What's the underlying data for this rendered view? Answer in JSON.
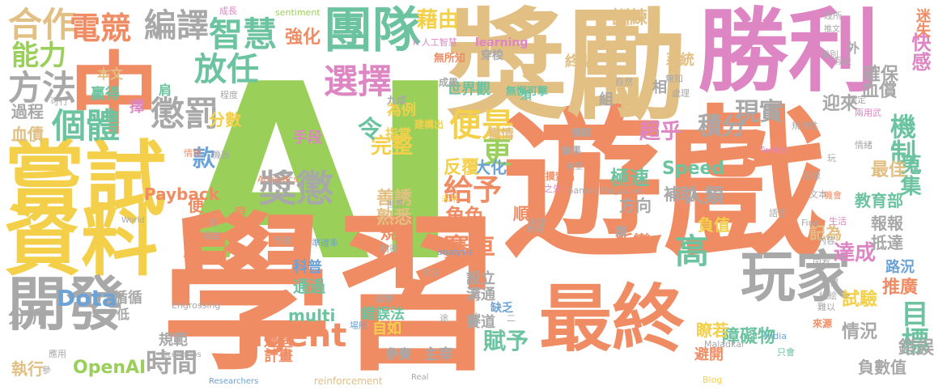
{
  "words": [
    {
      "text": "AI",
      "color": "#9ad05a"
    },
    {
      "text": "遊戲",
      "color": "#f08c64"
    },
    {
      "text": "學習",
      "color": "#f08c64"
    },
    {
      "text": "獎勵",
      "color": "#e2bf83"
    },
    {
      "text": "勝利",
      "color": "#de85c4"
    },
    {
      "text": "中",
      "color": "#f08c64"
    },
    {
      "text": "嘗試",
      "color": "#f4d04a"
    },
    {
      "text": "資料",
      "color": "#f4d04a"
    },
    {
      "text": "最終",
      "color": "#f08c64"
    },
    {
      "text": "玩家",
      "color": "#a8a8a8"
    },
    {
      "text": "開發",
      "color": "#a8a8a8"
    },
    {
      "text": "團隊",
      "color": "#6cc3a0"
    },
    {
      "text": "智慧",
      "color": "#6cc3a0"
    },
    {
      "text": "放任",
      "color": "#6cc3a0"
    },
    {
      "text": "懲罰",
      "color": "#a8a8a8"
    },
    {
      "text": "獎懲",
      "color": "#a8a8a8"
    },
    {
      "text": "agent",
      "color": "#f08c64"
    },
    {
      "text": "個體",
      "color": "#6cc3a0"
    },
    {
      "text": "選擇",
      "color": "#de85c4"
    },
    {
      "text": "方法",
      "color": "#a8a8a8"
    },
    {
      "text": "便是",
      "color": "#f4d04a"
    },
    {
      "text": "合作",
      "color": "#e2bf83"
    },
    {
      "text": "編譯",
      "color": "#a8a8a8"
    },
    {
      "text": "電競",
      "color": "#f08c64"
    },
    {
      "text": "能力",
      "color": "#9ad05a"
    },
    {
      "text": "更",
      "color": "#9ad05a"
    },
    {
      "text": "給予",
      "color": "#f08c64"
    },
    {
      "text": "高",
      "color": "#6cc3a0"
    },
    {
      "text": "賽車",
      "color": "#f08c64"
    },
    {
      "text": "積分",
      "color": "#a8a8a8"
    },
    {
      "text": "機制",
      "color": "#6cc3a0"
    },
    {
      "text": "目標",
      "color": "#6cc3a0"
    },
    {
      "text": "時間",
      "color": "#a8a8a8"
    },
    {
      "text": "賦予",
      "color": "#6cc3a0"
    },
    {
      "text": "現實",
      "color": "#a8a8a8"
    },
    {
      "text": "訓練",
      "color": "#e2bf83"
    },
    {
      "text": "藉由",
      "color": "#f4d04a"
    },
    {
      "text": "超乎",
      "color": "#de85c4"
    },
    {
      "text": "完整",
      "color": "#f4d04a"
    },
    {
      "text": "令",
      "color": "#6cc3a0"
    },
    {
      "text": "款",
      "color": "#6ba3d6"
    },
    {
      "text": "人類",
      "color": "#a8a8a8"
    },
    {
      "text": "角色",
      "color": "#f08c64"
    },
    {
      "text": "達成",
      "color": "#de85c4"
    },
    {
      "text": "情況",
      "color": "#a8a8a8"
    },
    {
      "text": "蒐集",
      "color": "#6cc3a0"
    },
    {
      "text": "Dota",
      "color": "#6ba3d6"
    },
    {
      "text": "OpenAI",
      "color": "#9ad05a"
    },
    {
      "text": "分析",
      "color": "#a8a8a8"
    },
    {
      "text": "過程",
      "color": "#a8a8a8"
    },
    {
      "text": "執行",
      "color": "#e2bf83"
    },
    {
      "text": "血債",
      "color": "#e2bf83"
    },
    {
      "text": "本文",
      "color": "#e2bf83"
    },
    {
      "text": "贏得",
      "color": "#6cc3a0"
    },
    {
      "text": "擇",
      "color": "#de85c4"
    },
    {
      "text": "肩",
      "color": "#6cc3a0"
    },
    {
      "text": "強化",
      "color": "#f08c64"
    },
    {
      "text": "手段",
      "color": "#de85c4"
    },
    {
      "text": "化",
      "color": "#9ad05a"
    },
    {
      "text": "分數",
      "color": "#f4d04a"
    },
    {
      "text": "Payback",
      "color": "#f08c64"
    },
    {
      "text": "Speed",
      "color": "#6cc3a0"
    },
    {
      "text": "極速",
      "color": "#6cc3a0"
    },
    {
      "text": "大化",
      "color": "#6ba3d6"
    },
    {
      "text": "反覆",
      "color": "#f4d04a"
    },
    {
      "text": "善誘",
      "color": "#e2bf83"
    },
    {
      "text": "熟悉",
      "color": "#e2bf83"
    },
    {
      "text": "規則",
      "color": "#f08c64"
    },
    {
      "text": "順暢",
      "color": "#f08c64"
    },
    {
      "text": "指掌",
      "color": "#f4d04a"
    },
    {
      "text": "世界觀",
      "color": "#6cc3a0"
    },
    {
      "text": "為例",
      "color": "#f4d04a"
    },
    {
      "text": "盡情",
      "color": "#e2bf83"
    },
    {
      "text": "終點",
      "color": "#e2bf83"
    },
    {
      "text": "系統",
      "color": "#e2bf83"
    },
    {
      "text": "補助",
      "color": "#a8a8a8"
    },
    {
      "text": "方向",
      "color": "#a8a8a8"
    },
    {
      "text": "負值",
      "color": "#f4d04a"
    },
    {
      "text": "記為",
      "color": "#e2bf83"
    },
    {
      "text": "教育部",
      "color": "#6cc3a0"
    },
    {
      "text": "報報",
      "color": "#a8a8a8"
    },
    {
      "text": "抵達",
      "color": "#a8a8a8"
    },
    {
      "text": "最佳",
      "color": "#e2bf83"
    },
    {
      "text": "迎來",
      "color": "#a8a8a8"
    },
    {
      "text": "確保",
      "color": "#a8a8a8"
    },
    {
      "text": "血償",
      "color": "#a8a8a8"
    },
    {
      "text": "快感",
      "color": "#de85c4"
    },
    {
      "text": "迷失",
      "color": "#f08c64"
    },
    {
      "text": "推廣",
      "color": "#f08c64"
    },
    {
      "text": "路況",
      "color": "#6ba3d6"
    },
    {
      "text": "錯誤",
      "color": "#a8a8a8"
    },
    {
      "text": "試驗",
      "color": "#f4d04a"
    },
    {
      "text": "叛變",
      "color": "#f08c64"
    },
    {
      "text": "障礙物",
      "color": "#6cc3a0"
    },
    {
      "text": "瞭若",
      "color": "#f4d04a"
    },
    {
      "text": "避開",
      "color": "#f08c64"
    },
    {
      "text": "負數值",
      "color": "#a8a8a8"
    },
    {
      "text": "科普",
      "color": "#6ba3d6"
    },
    {
      "text": "通過",
      "color": "#6cc3a0"
    },
    {
      "text": "設立",
      "color": "#a8a8a8"
    },
    {
      "text": "溝通",
      "color": "#a8a8a8"
    },
    {
      "text": "賽道",
      "color": "#a8a8a8"
    },
    {
      "text": "錯誤法",
      "color": "#6cc3a0"
    },
    {
      "text": "自如",
      "color": "#f4d04a"
    },
    {
      "text": "參賽",
      "color": "#a8a8a8"
    },
    {
      "text": "主宰",
      "color": "#a8a8a8"
    },
    {
      "text": "計畫",
      "color": "#f08c64"
    },
    {
      "text": "遭遇",
      "color": "#f08c64"
    },
    {
      "text": "規範",
      "color": "#a8a8a8"
    },
    {
      "text": "循循",
      "color": "#a8a8a8"
    },
    {
      "text": "multi",
      "color": "#6cc3a0"
    },
    {
      "text": "便",
      "color": "#f08c64"
    },
    {
      "text": "組",
      "color": "#a8a8a8"
    },
    {
      "text": "相",
      "color": "#a8a8a8"
    },
    {
      "text": "外",
      "color": "#a8a8a8"
    },
    {
      "text": "須",
      "color": "#6cc3a0"
    },
    {
      "text": "低",
      "color": "#a8a8a8"
    },
    {
      "text": "成長",
      "color": "#de85c4"
    },
    {
      "text": "sentiment",
      "color": "#9ad05a"
    },
    {
      "text": "K 人工智慧",
      "color": "#de85c4"
    },
    {
      "text": "Find",
      "color": "#a8a8a8"
    },
    {
      "text": "India",
      "color": "#6ba3d6"
    },
    {
      "text": "Twitter",
      "color": "#de85c4"
    },
    {
      "text": "Analytics",
      "color": "#f08c64"
    },
    {
      "text": "Games Magazine",
      "color": "#a8a8a8"
    },
    {
      "text": "analysis",
      "color": "#6ba3d6"
    },
    {
      "text": "Engrossing",
      "color": "#a8a8a8"
    },
    {
      "text": "Scenarios",
      "color": "#a8a8a8"
    },
    {
      "text": "reinforcement",
      "color": "#e2bf83"
    },
    {
      "text": "Researchers",
      "color": "#6ba3d6"
    },
    {
      "text": "Maladkar",
      "color": "#a8a8a8"
    },
    {
      "text": "Blog",
      "color": "#f4d04a"
    },
    {
      "text": "World",
      "color": "#a8a8a8"
    },
    {
      "text": "Real",
      "color": "#a8a8a8"
    },
    {
      "text": "learning",
      "color": "#de85c4"
    },
    {
      "text": "穿梭",
      "color": "#a8a8a8"
    },
    {
      "text": "無所知",
      "color": "#f08c64"
    },
    {
      "text": "成果",
      "color": "#a8a8a8"
    },
    {
      "text": "九成",
      "color": "#a8a8a8"
    },
    {
      "text": "建構出",
      "color": "#f4d04a"
    },
    {
      "text": "無懈可擊",
      "color": "#6cc3a0"
    },
    {
      "text": "摸索出",
      "color": "#f08c64"
    },
    {
      "text": "預期",
      "color": "#a8a8a8"
    },
    {
      "text": "後果",
      "color": "#a8a8a8"
    },
    {
      "text": "可行",
      "color": "#a8a8a8"
    },
    {
      "text": "程度",
      "color": "#a8a8a8"
    },
    {
      "text": "情境",
      "color": "#f08c64"
    },
    {
      "text": "機器",
      "color": "#a8a8a8"
    },
    {
      "text": "未來",
      "color": "#f4d04a"
    },
    {
      "text": "世界",
      "color": "#a8a8a8"
    },
    {
      "text": "不錯",
      "color": "#a8a8a8"
    },
    {
      "text": "模型",
      "color": "#a8a8a8"
    },
    {
      "text": "之外",
      "color": "#de85c4"
    },
    {
      "text": "虛擬",
      "color": "#f08c64"
    },
    {
      "text": "類",
      "color": "#a8a8a8"
    },
    {
      "text": "時",
      "color": "#f08c64"
    },
    {
      "text": "常",
      "color": "#a8a8a8"
    },
    {
      "text": "想要",
      "color": "#a8a8a8"
    },
    {
      "text": "準確率",
      "color": "#6ba3d6"
    },
    {
      "text": "精密",
      "color": "#a8a8a8"
    },
    {
      "text": "複製",
      "color": "#a8a8a8"
    },
    {
      "text": "常見",
      "color": "#a8a8a8"
    },
    {
      "text": "場所",
      "color": "#6ba3d6"
    },
    {
      "text": "途",
      "color": "#a8a8a8"
    },
    {
      "text": "次",
      "color": "#a8a8a8"
    },
    {
      "text": "缺乏",
      "color": "#6ba3d6"
    },
    {
      "text": "二",
      "color": "#a8a8a8"
    },
    {
      "text": "圖像",
      "color": "#a8a8a8"
    },
    {
      "text": "應用",
      "color": "#a8a8a8"
    },
    {
      "text": "參",
      "color": "#a8a8a8"
    },
    {
      "text": "深度",
      "color": "#a8a8a8"
    },
    {
      "text": "舉例",
      "color": "#a8a8a8"
    },
    {
      "text": "玩",
      "color": "#a8a8a8"
    },
    {
      "text": "文本",
      "color": "#a8a8a8"
    },
    {
      "text": "機會",
      "color": "#f08c64"
    },
    {
      "text": "生活",
      "color": "#de85c4"
    },
    {
      "text": "規律性",
      "color": "#a8a8a8"
    },
    {
      "text": "語言",
      "color": "#a8a8a8"
    },
    {
      "text": "內容",
      "color": "#a8a8a8"
    },
    {
      "text": "固有",
      "color": "#a8a8a8"
    },
    {
      "text": "獲得",
      "color": "#a8a8a8"
    },
    {
      "text": "細絵",
      "color": "#a8a8a8"
    },
    {
      "text": "來源",
      "color": "#f08c64"
    },
    {
      "text": "難以",
      "color": "#a8a8a8"
    },
    {
      "text": "只會",
      "color": "#6cc3a0"
    },
    {
      "text": "自然",
      "color": "#a8a8a8"
    },
    {
      "text": "無知",
      "color": "#a8a8a8"
    },
    {
      "text": "處理",
      "color": "#a8a8a8"
    },
    {
      "text": "識別",
      "color": "#a8a8a8"
    },
    {
      "text": "理所",
      "color": "#a8a8a8"
    },
    {
      "text": "推文",
      "color": "#a8a8a8"
    },
    {
      "text": "限定",
      "color": "#a8a8a8"
    },
    {
      "text": "假設",
      "color": "#a8a8a8"
    },
    {
      "text": "兩用武",
      "color": "#de85c4"
    },
    {
      "text": "情緒",
      "color": "#a8a8a8"
    },
    {
      "text": "設定",
      "color": "#a8a8a8"
    },
    {
      "text": "領域",
      "color": "#a8a8a8"
    },
    {
      "text": "差異",
      "color": "#a8a8a8"
    }
  ]
}
